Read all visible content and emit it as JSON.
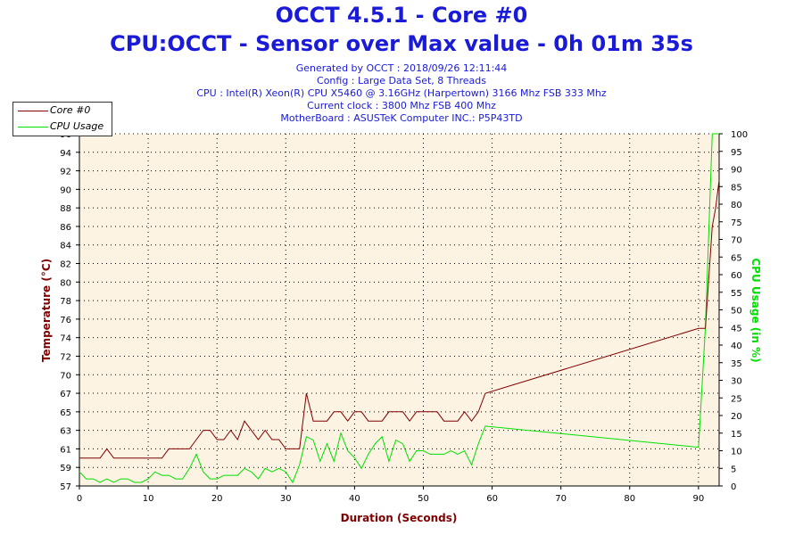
{
  "header": {
    "title": "OCCT 4.5.1 - Core #0",
    "subtitle": "CPU:OCCT - Sensor over Max value - 0h 01m 35s",
    "info_lines": [
      "Generated by OCCT : 2018/09/26 12:11:44",
      "Config : Large Data Set, 8 Threads",
      "CPU : Intel(R) Xeon(R) CPU X5460 @ 3.16GHz (Harpertown) 3166 Mhz FSB 333 Mhz",
      "Current clock : 3800 Mhz FSB 400 Mhz",
      "MotherBoard : ASUSTeK Computer INC.: P5P43TD"
    ]
  },
  "colors": {
    "temperature": "#800000",
    "cpu_usage": "#00e000",
    "title": "#1a1ad9",
    "plot_bg": "#fdf3e3"
  },
  "chart_data": {
    "type": "line",
    "xlabel": "Duration (Seconds)",
    "ylabel_left": "Temperature (°C)",
    "ylabel_right": "CPU Usage (in %)",
    "xlim": [
      0,
      93
    ],
    "xticks": [
      "0",
      "10",
      "20",
      "30",
      "40",
      "50",
      "60",
      "70",
      "80",
      "90"
    ],
    "ylim_left": [
      57,
      96
    ],
    "ylim_right": [
      0,
      100
    ],
    "yticks_left": [
      "57",
      "59",
      "61",
      "63",
      "65",
      "67",
      "70",
      "72",
      "74",
      "76",
      "78",
      "80",
      "82",
      "84",
      "86",
      "88",
      "90",
      "92",
      "94",
      "96"
    ],
    "yticks_right": [
      "0",
      "5",
      "10",
      "15",
      "20",
      "25",
      "30",
      "35",
      "40",
      "45",
      "50",
      "55",
      "60",
      "65",
      "70",
      "75",
      "80",
      "85",
      "90",
      "95",
      "100"
    ],
    "grid": true,
    "legend_position": "top-left",
    "series": [
      {
        "name": "Core #0",
        "points": [
          [
            0,
            60
          ],
          [
            3,
            60
          ],
          [
            4,
            61
          ],
          [
            5,
            60
          ],
          [
            12,
            60
          ],
          [
            13,
            61
          ],
          [
            16,
            61
          ],
          [
            17,
            62
          ],
          [
            18,
            63
          ],
          [
            19,
            63
          ],
          [
            20,
            62
          ],
          [
            21,
            62
          ],
          [
            22,
            63
          ],
          [
            23,
            62
          ],
          [
            24,
            64
          ],
          [
            25,
            63
          ],
          [
            26,
            62
          ],
          [
            27,
            63
          ],
          [
            28,
            62
          ],
          [
            29,
            62
          ],
          [
            30,
            61
          ],
          [
            31,
            61
          ],
          [
            32,
            61
          ],
          [
            33,
            67
          ],
          [
            34,
            64
          ],
          [
            36,
            64
          ],
          [
            37,
            65
          ],
          [
            38,
            65
          ],
          [
            39,
            64
          ],
          [
            40,
            65
          ],
          [
            41,
            65
          ],
          [
            42,
            64
          ],
          [
            44,
            64
          ],
          [
            45,
            65
          ],
          [
            46,
            65
          ],
          [
            47,
            65
          ],
          [
            48,
            64
          ],
          [
            49,
            65
          ],
          [
            50,
            65
          ],
          [
            51,
            65
          ],
          [
            52,
            65
          ],
          [
            53,
            64
          ],
          [
            54,
            64
          ],
          [
            55,
            64
          ],
          [
            56,
            65
          ],
          [
            57,
            64
          ],
          [
            58,
            65
          ],
          [
            59,
            67
          ],
          [
            90,
            75
          ],
          [
            91,
            75
          ],
          [
            92,
            86
          ],
          [
            92.5,
            88
          ],
          [
            93,
            91
          ]
        ]
      },
      {
        "name": "CPU Usage",
        "points": [
          [
            0,
            4
          ],
          [
            1,
            2
          ],
          [
            2,
            2
          ],
          [
            3,
            1
          ],
          [
            4,
            2
          ],
          [
            5,
            1
          ],
          [
            6,
            2
          ],
          [
            7,
            2
          ],
          [
            8,
            1
          ],
          [
            9,
            1
          ],
          [
            10,
            2
          ],
          [
            11,
            4
          ],
          [
            12,
            3
          ],
          [
            13,
            3
          ],
          [
            14,
            2
          ],
          [
            15,
            2
          ],
          [
            16,
            5
          ],
          [
            17,
            9
          ],
          [
            18,
            4
          ],
          [
            19,
            2
          ],
          [
            20,
            2
          ],
          [
            21,
            3
          ],
          [
            22,
            3
          ],
          [
            23,
            3
          ],
          [
            24,
            5
          ],
          [
            25,
            4
          ],
          [
            26,
            2
          ],
          [
            27,
            5
          ],
          [
            28,
            4
          ],
          [
            29,
            5
          ],
          [
            30,
            4
          ],
          [
            31,
            1
          ],
          [
            32,
            6
          ],
          [
            33,
            14
          ],
          [
            34,
            13
          ],
          [
            35,
            7
          ],
          [
            36,
            12
          ],
          [
            37,
            7
          ],
          [
            38,
            15
          ],
          [
            39,
            10
          ],
          [
            40,
            8
          ],
          [
            41,
            5
          ],
          [
            42,
            9
          ],
          [
            43,
            12
          ],
          [
            44,
            14
          ],
          [
            45,
            7
          ],
          [
            46,
            13
          ],
          [
            47,
            12
          ],
          [
            48,
            7
          ],
          [
            49,
            10
          ],
          [
            50,
            10
          ],
          [
            51,
            9
          ],
          [
            52,
            9
          ],
          [
            53,
            9
          ],
          [
            54,
            10
          ],
          [
            55,
            9
          ],
          [
            56,
            10
          ],
          [
            57,
            6
          ],
          [
            58,
            12
          ],
          [
            59,
            17
          ],
          [
            90,
            11
          ],
          [
            91,
            45
          ],
          [
            92,
            100
          ],
          [
            93,
            100
          ]
        ]
      }
    ]
  }
}
